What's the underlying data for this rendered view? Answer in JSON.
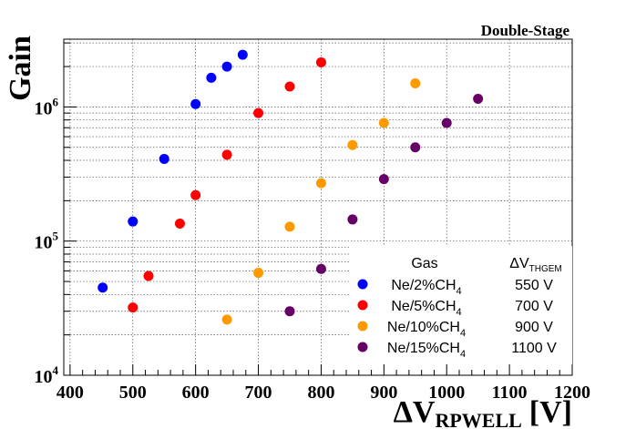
{
  "chart_data": {
    "type": "scatter",
    "title": "Double-Stage",
    "xlabel": "ΔV",
    "xlabel_sub": "RPWELL",
    "xlabel_unit": "[V]",
    "ylabel": "Gain",
    "xlim": [
      390,
      1200
    ],
    "ylim": [
      10000,
      3200000
    ],
    "yscale": "log",
    "x_ticks": [
      400,
      500,
      600,
      700,
      800,
      900,
      1000,
      1100,
      1200
    ],
    "y_tick_labels": [
      {
        "value": 10000,
        "base": "10",
        "exp": "4"
      },
      {
        "value": 100000,
        "base": "10",
        "exp": "5"
      },
      {
        "value": 1000000,
        "base": "10",
        "exp": "6"
      }
    ],
    "grid": true,
    "legend": {
      "position": "bottom-right",
      "header_gas": "Gas",
      "header_dv": "ΔV",
      "header_dv_sub": "THGEM"
    },
    "series": [
      {
        "name_main": "Ne/2%CH",
        "name_sub": "4",
        "dv_thgem": "550 V",
        "color": "#0000ff",
        "points": [
          [
            452,
            45000
          ],
          [
            500,
            140000
          ],
          [
            550,
            410000
          ],
          [
            600,
            1050000
          ],
          [
            625,
            1650000
          ],
          [
            650,
            2000000
          ],
          [
            675,
            2450000
          ]
        ]
      },
      {
        "name_main": "Ne/5%CH",
        "name_sub": "4",
        "dv_thgem": "700 V",
        "color": "#ff0000",
        "points": [
          [
            500,
            32000
          ],
          [
            525,
            55000
          ],
          [
            575,
            135000
          ],
          [
            600,
            220000
          ],
          [
            650,
            440000
          ],
          [
            700,
            900000
          ],
          [
            750,
            1420000
          ],
          [
            800,
            2150000
          ]
        ]
      },
      {
        "name_main": "Ne/10%CH",
        "name_sub": "4",
        "dv_thgem": "900 V",
        "color": "#ff9900",
        "points": [
          [
            650,
            26000
          ],
          [
            700,
            58000
          ],
          [
            750,
            128000
          ],
          [
            800,
            270000
          ],
          [
            850,
            520000
          ],
          [
            900,
            760000
          ],
          [
            950,
            1500000
          ]
        ]
      },
      {
        "name_main": "Ne/15%CH",
        "name_sub": "4",
        "dv_thgem": "1100 V",
        "color": "#660066",
        "points": [
          [
            750,
            30000
          ],
          [
            800,
            62000
          ],
          [
            850,
            145000
          ],
          [
            900,
            290000
          ],
          [
            950,
            500000
          ],
          [
            1000,
            760000
          ],
          [
            1050,
            1150000
          ]
        ]
      }
    ]
  }
}
